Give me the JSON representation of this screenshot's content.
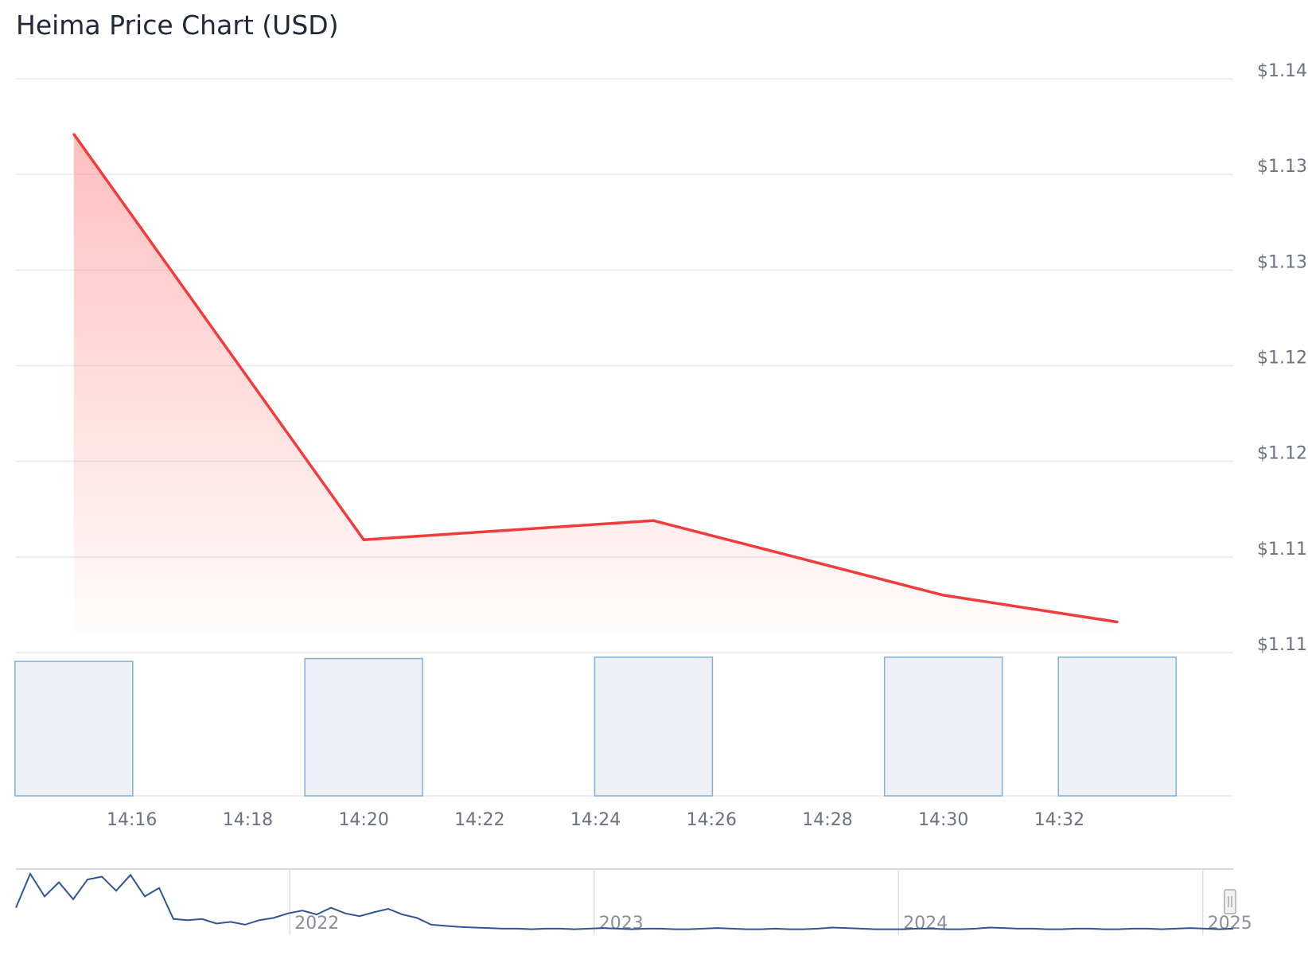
{
  "title": "Heima Price Chart (USD)",
  "colors": {
    "price_line": "#f23c3c",
    "price_fill": "#ff8a8a",
    "volume_fill": "#edf1f5",
    "volume_stroke": "#7fb0da",
    "navigator_line": "#2f5597",
    "grid": "#e6e8eb"
  },
  "chart_data": {
    "type": "line",
    "title": "Heima Price Chart (USD)",
    "x_ticks": [
      "14:16",
      "14:18",
      "14:20",
      "14:22",
      "14:24",
      "14:26",
      "14:28",
      "14:30",
      "14:32"
    ],
    "y_ticks": [
      "$1.14",
      "$1.13",
      "$1.13",
      "$1.12",
      "$1.12",
      "$1.11",
      "$1.11"
    ],
    "y_tick_values": [
      1.14,
      1.135,
      1.13,
      1.125,
      1.12,
      1.115,
      1.11
    ],
    "ylim": [
      1.11,
      1.14
    ],
    "grid": true,
    "series": [
      {
        "kind": "price",
        "x": [
          "14:15",
          "14:20",
          "14:25",
          "14:30",
          "14:33"
        ],
        "values": [
          1.1371,
          1.1159,
          1.1169,
          1.113,
          1.1116
        ]
      },
      {
        "kind": "volume",
        "x": [
          "14:15",
          "14:20",
          "14:25",
          "14:30",
          "14:33"
        ],
        "values": [
          0.96,
          0.98,
          0.99,
          0.99,
          0.99
        ]
      }
    ],
    "navigator": {
      "labels": [
        "2022",
        "2023",
        "2024",
        "2025"
      ],
      "range_start": "2021",
      "range_end": "2025",
      "values": [
        0.4,
        1.0,
        0.6,
        0.85,
        0.55,
        0.9,
        0.95,
        0.7,
        0.98,
        0.6,
        0.75,
        0.2,
        0.18,
        0.2,
        0.12,
        0.15,
        0.1,
        0.18,
        0.22,
        0.3,
        0.35,
        0.28,
        0.4,
        0.3,
        0.25,
        0.32,
        0.38,
        0.28,
        0.22,
        0.1,
        0.08,
        0.06,
        0.05,
        0.04,
        0.03,
        0.03,
        0.02,
        0.03,
        0.03,
        0.02,
        0.03,
        0.04,
        0.03,
        0.02,
        0.03,
        0.03,
        0.02,
        0.02,
        0.03,
        0.04,
        0.03,
        0.02,
        0.02,
        0.03,
        0.02,
        0.02,
        0.03,
        0.05,
        0.04,
        0.03,
        0.02,
        0.02,
        0.02,
        0.03,
        0.03,
        0.02,
        0.02,
        0.03,
        0.05,
        0.04,
        0.03,
        0.03,
        0.02,
        0.02,
        0.03,
        0.03,
        0.02,
        0.02,
        0.03,
        0.03,
        0.02,
        0.03,
        0.04,
        0.03,
        0.02,
        0.03
      ]
    }
  }
}
